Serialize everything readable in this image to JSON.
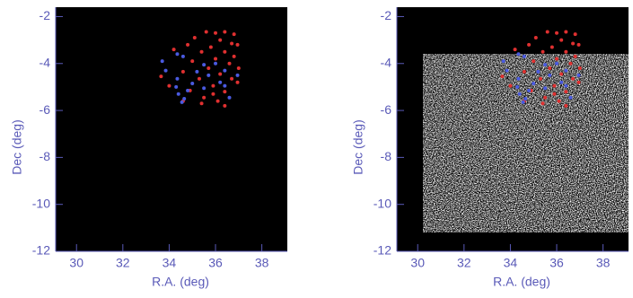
{
  "chart_data": [
    {
      "type": "scatter",
      "xlabel": "R.A. (deg)",
      "ylabel": "Dec (deg)",
      "xlim": [
        29.1,
        39.1
      ],
      "ylim": [
        -12,
        -1.6
      ],
      "xticks": [
        30,
        32,
        34,
        36,
        38
      ],
      "yticks": [
        -2,
        -4,
        -6,
        -8,
        -10,
        -12
      ],
      "series": [
        {
          "color": "#e03030",
          "x": [
            35.6,
            36.0,
            36.4,
            36.8,
            35.1,
            36.2,
            36.7,
            34.8,
            35.8,
            36.95,
            35.4,
            36.4,
            34.2,
            36.0,
            36.8,
            35.0,
            36.6,
            35.7,
            37.0,
            33.65,
            34.6,
            36.2,
            35.3,
            36.7,
            34.0,
            35.9,
            36.95,
            34.9,
            36.4,
            35.5,
            34.6,
            36.1,
            35.4,
            36.4,
            35.9
          ],
          "y": [
            -2.65,
            -2.7,
            -2.65,
            -2.75,
            -2.9,
            -3.0,
            -3.15,
            -3.2,
            -3.3,
            -3.2,
            -3.5,
            -3.5,
            -3.4,
            -3.8,
            -3.7,
            -3.9,
            -4.0,
            -4.2,
            -4.2,
            -4.55,
            -4.35,
            -4.45,
            -4.65,
            -4.65,
            -4.95,
            -4.95,
            -4.8,
            -5.15,
            -5.2,
            -5.45,
            -5.6,
            -5.6,
            -5.7,
            -5.8,
            -5.3
          ]
        },
        {
          "color": "#4a5ae0",
          "x": [
            34.35,
            34.6,
            33.7,
            35.5,
            36.0,
            33.85,
            35.2,
            35.7,
            36.4,
            36.95,
            34.35,
            36.2,
            35.0,
            34.3,
            34.8,
            35.5,
            34.4,
            36.6,
            34.65,
            34.55,
            36.4
          ],
          "y": [
            -3.6,
            -3.7,
            -3.9,
            -4.05,
            -4.0,
            -4.3,
            -4.35,
            -4.5,
            -4.3,
            -4.5,
            -4.65,
            -4.8,
            -4.85,
            -5.0,
            -5.15,
            -5.05,
            -5.3,
            -5.45,
            -5.5,
            -5.65,
            -4.95
          ]
        }
      ]
    },
    {
      "type": "scatter",
      "xlabel": "R.A. (deg)",
      "ylabel": "Dec (deg)",
      "xlim": [
        29.1,
        39.1
      ],
      "ylim": [
        -12,
        -1.6
      ],
      "xticks": [
        30,
        32,
        34,
        36,
        38
      ],
      "yticks": [
        -2,
        -4,
        -6,
        -8,
        -10,
        -12
      ],
      "series": [
        {
          "color": "#e03030",
          "x": [
            35.6,
            36.0,
            36.4,
            36.8,
            35.1,
            36.2,
            36.7,
            34.8,
            35.8,
            36.95,
            35.4,
            36.4,
            34.2,
            36.0,
            36.8,
            35.0,
            36.6,
            35.7,
            37.0,
            33.65,
            34.6,
            36.2,
            35.3,
            36.7,
            34.0,
            35.9,
            36.95,
            34.9,
            36.4,
            35.5,
            34.6,
            36.1,
            35.4,
            36.4,
            35.9
          ],
          "y": [
            -2.65,
            -2.7,
            -2.65,
            -2.75,
            -2.9,
            -3.0,
            -3.15,
            -3.2,
            -3.3,
            -3.2,
            -3.5,
            -3.5,
            -3.4,
            -3.8,
            -3.7,
            -3.9,
            -4.0,
            -4.2,
            -4.2,
            -4.55,
            -4.35,
            -4.45,
            -4.65,
            -4.65,
            -4.95,
            -4.95,
            -4.8,
            -5.15,
            -5.2,
            -5.45,
            -5.6,
            -5.6,
            -5.7,
            -5.8,
            -5.3
          ]
        },
        {
          "color": "#4a5ae0",
          "x": [
            34.35,
            34.6,
            33.7,
            35.5,
            36.0,
            33.85,
            35.2,
            35.7,
            36.4,
            36.95,
            34.35,
            36.2,
            35.0,
            34.3,
            34.8,
            35.5,
            34.4,
            36.6,
            34.65,
            34.55,
            36.4
          ],
          "y": [
            -3.6,
            -3.7,
            -3.9,
            -4.05,
            -4.0,
            -4.3,
            -4.35,
            -4.5,
            -4.3,
            -4.5,
            -4.65,
            -4.8,
            -4.85,
            -5.0,
            -5.15,
            -5.05,
            -5.3,
            -5.45,
            -5.5,
            -5.65,
            -4.95
          ]
        }
      ]
    }
  ]
}
